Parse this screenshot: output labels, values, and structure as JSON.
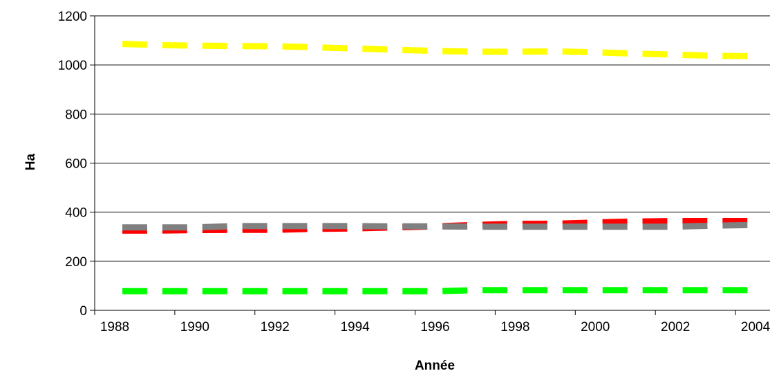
{
  "chart_data": {
    "type": "line",
    "title": "",
    "xlabel": "Année",
    "ylabel": "Ha",
    "x": [
      1988,
      1989,
      1990,
      1991,
      1992,
      1993,
      1994,
      1995,
      1996,
      1997,
      1998,
      1999,
      2000,
      2001,
      2002,
      2003,
      2004
    ],
    "x_tick_labels": [
      "1988",
      "1990",
      "1992",
      "1994",
      "1996",
      "1998",
      "2000",
      "2002",
      "2004"
    ],
    "ylim": [
      0,
      1200
    ],
    "y_ticks": [
      0,
      200,
      400,
      600,
      800,
      1000,
      1200
    ],
    "y_tick_labels": [
      "0",
      "200",
      "400",
      "600",
      "800",
      "1000",
      "1200"
    ],
    "grid": "horizontal",
    "legend": "none",
    "series": [
      {
        "color": "#ffff00",
        "values": [
          1087,
          1081,
          1079,
          1077,
          1076,
          1072,
          1067,
          1062,
          1057,
          1054,
          1054,
          1055,
          1052,
          1046,
          1042,
          1037,
          1036
        ]
      },
      {
        "color": "#ff0000",
        "values": [
          325,
          325,
          327,
          328,
          328,
          332,
          334,
          338,
          342,
          348,
          352,
          353,
          358,
          362,
          364,
          364,
          364
        ]
      },
      {
        "color": "#808080",
        "values": [
          338,
          338,
          338,
          343,
          343,
          343,
          343,
          342,
          342,
          341,
          341,
          341,
          341,
          341,
          341,
          345,
          348
        ]
      },
      {
        "color": "#00ff00",
        "values": [
          78,
          78,
          78,
          78,
          78,
          78,
          78,
          78,
          78,
          82,
          82,
          82,
          82,
          82,
          82,
          82,
          82
        ]
      }
    ]
  }
}
